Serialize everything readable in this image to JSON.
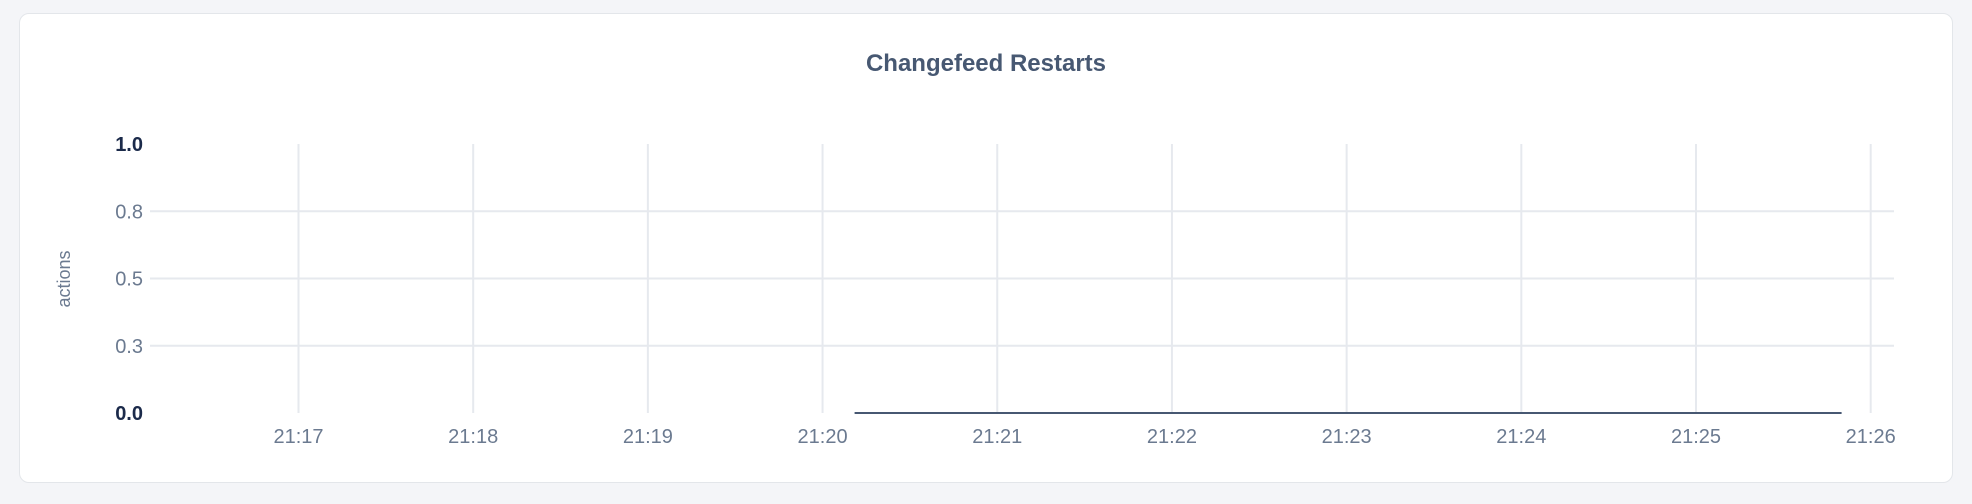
{
  "chart_data": {
    "type": "line",
    "title": "Changefeed Restarts",
    "ylabel": "actions",
    "xlabel": "",
    "ylim": [
      0,
      1
    ],
    "y_ticks": [
      "0.0",
      "0.3",
      "0.5",
      "0.8",
      "1.0"
    ],
    "y_tick_values": [
      0,
      0.25,
      0.5,
      0.75,
      1.0
    ],
    "x_ticks": [
      "21:17",
      "21:18",
      "21:19",
      "21:20",
      "21:21",
      "21:22",
      "21:23",
      "21:24",
      "21:25",
      "21:26"
    ],
    "xlim": [
      "21:16:09",
      "21:26:08"
    ],
    "grid": true,
    "series": [
      {
        "x": [
          "21:20:11",
          "21:25:50"
        ],
        "y": [
          0,
          0
        ],
        "color": "#475872"
      }
    ]
  }
}
